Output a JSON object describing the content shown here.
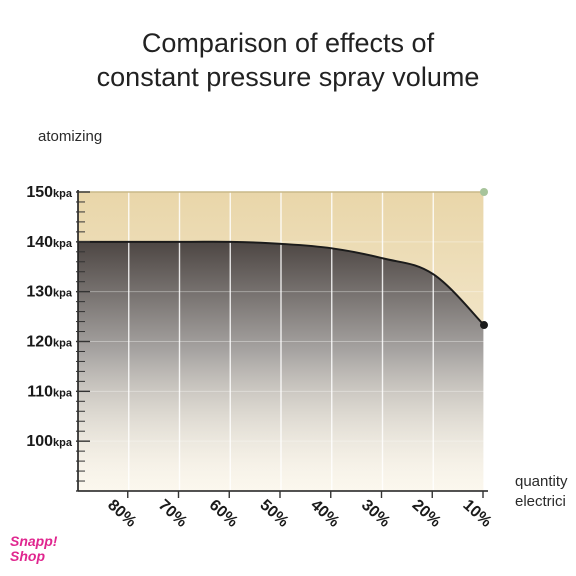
{
  "chart_data": {
    "type": "area",
    "title_lines": [
      "Comparison of effects of",
      "constant pressure spray volume"
    ],
    "ylabel": "atomizing",
    "xlabel_lines": [
      "quantity",
      "electrici"
    ],
    "categories": [
      "80%",
      "70%",
      "60%",
      "50%",
      "40%",
      "30%",
      "20%",
      "10%"
    ],
    "y_ticks": [
      {
        "value": 150,
        "label": "150",
        "unit": "kpa"
      },
      {
        "value": 140,
        "label": "140",
        "unit": "kpa"
      },
      {
        "value": 130,
        "label": "130",
        "unit": "kpa"
      },
      {
        "value": 120,
        "label": "120",
        "unit": "kpa"
      },
      {
        "value": 110,
        "label": "110",
        "unit": "kpa"
      },
      {
        "value": 100,
        "label": "100",
        "unit": "kpa"
      }
    ],
    "ylim": [
      90,
      150
    ],
    "grid": true,
    "series": [
      {
        "values": [
          150,
          150,
          150,
          150,
          150,
          150,
          150,
          150
        ],
        "color": "#f1e3c3",
        "end_marker_color": "#a7c49b"
      },
      {
        "values": [
          140,
          140,
          140,
          139.6,
          138.7,
          136.7,
          133.5,
          123.3
        ],
        "color": "#5c5552",
        "end_marker_color": "#1a1a1a"
      }
    ]
  },
  "watermark": {
    "lines": [
      "Snapp!",
      "Shop"
    ],
    "color": "#e0268f"
  }
}
